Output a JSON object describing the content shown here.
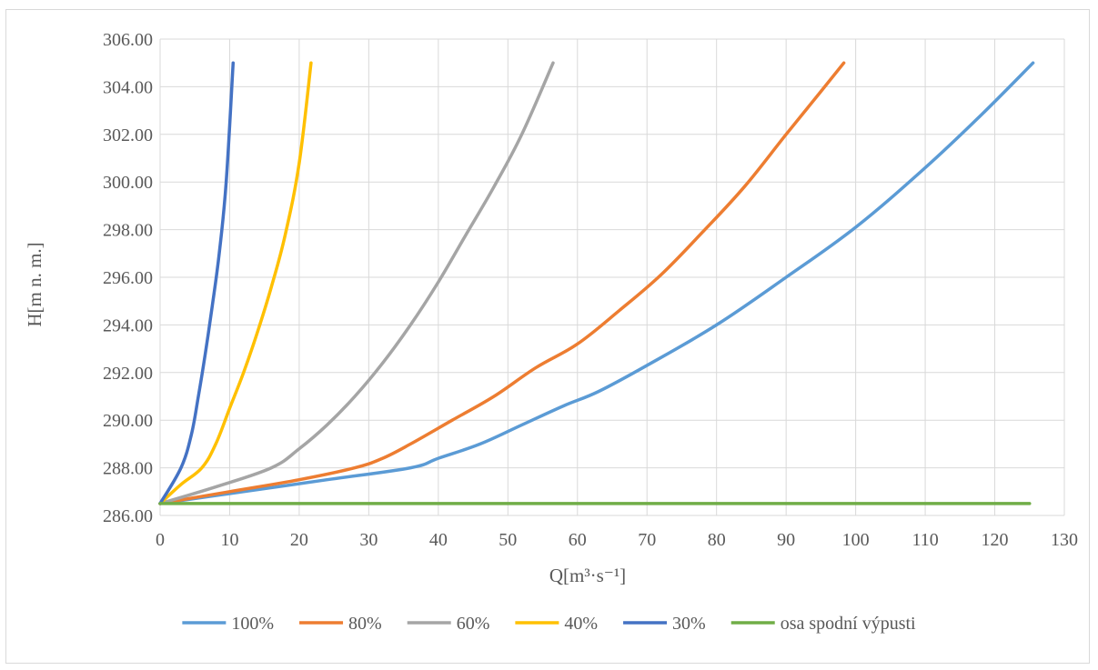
{
  "chart_data": {
    "type": "line",
    "xlabel": "Q[m³·s⁻¹]",
    "ylabel": "H[m n. m.]",
    "xlim": [
      0,
      130
    ],
    "ylim": [
      286,
      306
    ],
    "x_ticks": [
      "0",
      "10",
      "20",
      "30",
      "40",
      "50",
      "60",
      "70",
      "80",
      "90",
      "100",
      "110",
      "120",
      "130"
    ],
    "y_ticks": [
      "286.00",
      "288.00",
      "290.00",
      "292.00",
      "294.00",
      "296.00",
      "298.00",
      "300.00",
      "302.00",
      "304.00",
      "306.00"
    ],
    "grid": true,
    "legend_position": "bottom",
    "series": [
      {
        "name": "100%",
        "color": "#5B9BD5",
        "points": [
          [
            0,
            286.5
          ],
          [
            12,
            287.0
          ],
          [
            24,
            287.5
          ],
          [
            36,
            288.0
          ],
          [
            40,
            288.4
          ],
          [
            46,
            289.0
          ],
          [
            52,
            289.8
          ],
          [
            58,
            290.6
          ],
          [
            63,
            291.2
          ],
          [
            70,
            292.3
          ],
          [
            80,
            294.0
          ],
          [
            90,
            296.0
          ],
          [
            100,
            298.1
          ],
          [
            110,
            300.6
          ],
          [
            118,
            302.8
          ],
          [
            125.5,
            305.0
          ]
        ]
      },
      {
        "name": "80%",
        "color": "#ED7D31",
        "points": [
          [
            0,
            286.5
          ],
          [
            10,
            287.0
          ],
          [
            20,
            287.5
          ],
          [
            28,
            288.0
          ],
          [
            32,
            288.4
          ],
          [
            36,
            289.0
          ],
          [
            42,
            290.0
          ],
          [
            48,
            291.0
          ],
          [
            54,
            292.2
          ],
          [
            60,
            293.2
          ],
          [
            66,
            294.6
          ],
          [
            72,
            296.1
          ],
          [
            78,
            297.9
          ],
          [
            84,
            299.8
          ],
          [
            90,
            302.0
          ],
          [
            95,
            303.8
          ],
          [
            98.3,
            305.0
          ]
        ]
      },
      {
        "name": "60%",
        "color": "#A5A5A5",
        "points": [
          [
            0,
            286.5
          ],
          [
            8,
            287.2
          ],
          [
            16,
            288.0
          ],
          [
            20,
            288.8
          ],
          [
            24,
            289.8
          ],
          [
            28,
            291.0
          ],
          [
            32,
            292.4
          ],
          [
            36,
            294.0
          ],
          [
            40,
            295.8
          ],
          [
            44,
            297.8
          ],
          [
            48,
            299.8
          ],
          [
            52,
            302.0
          ],
          [
            56.5,
            305.0
          ]
        ]
      },
      {
        "name": "40%",
        "color": "#FFC000",
        "points": [
          [
            0,
            286.5
          ],
          [
            3,
            287.3
          ],
          [
            6,
            288.0
          ],
          [
            8,
            289.0
          ],
          [
            10,
            290.5
          ],
          [
            12,
            292.0
          ],
          [
            14,
            293.7
          ],
          [
            16,
            295.6
          ],
          [
            18,
            297.8
          ],
          [
            20,
            300.8
          ],
          [
            21.7,
            305.0
          ]
        ]
      },
      {
        "name": "30%",
        "color": "#4472C4",
        "points": [
          [
            0,
            286.5
          ],
          [
            3,
            288.0
          ],
          [
            4.5,
            289.4
          ],
          [
            5.5,
            291.0
          ],
          [
            6.5,
            292.8
          ],
          [
            7.5,
            294.8
          ],
          [
            8.5,
            297.0
          ],
          [
            9.5,
            300.0
          ],
          [
            10.5,
            305.0
          ]
        ]
      },
      {
        "name": "osa spodní výpusti",
        "color": "#70AD47",
        "points": [
          [
            0,
            286.5
          ],
          [
            125,
            286.5
          ]
        ]
      }
    ]
  }
}
